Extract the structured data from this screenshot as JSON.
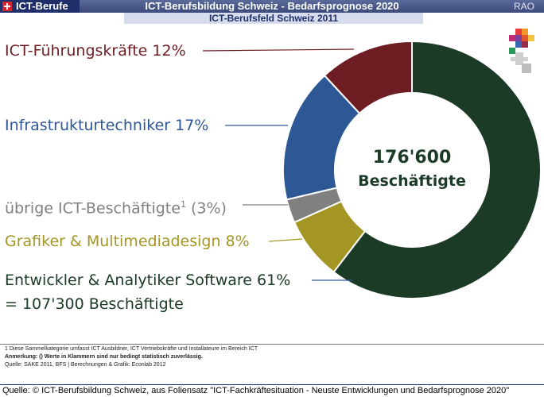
{
  "header": {
    "brand": "ICT-Berufe",
    "title": "ICT-Berufsbildung Schweiz - Bedarfsprognose 2020",
    "right_tag": "RAO",
    "subtitle": "ICT-Berufsfeld Schweiz 2011"
  },
  "colors": {
    "header_bg": "#3b4a7a",
    "brand_bg": "#1f2f6a",
    "subbar_bg": "#d6dcec"
  },
  "chart_data": {
    "type": "pie",
    "donut": true,
    "center_lines": [
      "176'600",
      "Beschäftigte"
    ],
    "slices": [
      {
        "label": "Entwickler & Analytiker Software",
        "value": 61,
        "color": "#1c3b26"
      },
      {
        "label": "Grafiker & Multimediadesign",
        "value": 8,
        "color": "#a39624"
      },
      {
        "label": "übrige ICT-Beschäftigte¹",
        "value": 3,
        "color": "#808080"
      },
      {
        "label": "Infrastrukturtechniker",
        "value": 17,
        "color": "#2e5796"
      },
      {
        "label": "ICT-Führungskräfte",
        "value": 12,
        "color": "#6e1d23"
      }
    ],
    "labels": {
      "fuehrung": "ICT-Führungskräfte 12%",
      "infra": "Infrastrukturtechniker 17%",
      "uebrige_main": "übrige ICT-Beschäftigte",
      "uebrige_sup": "1",
      "uebrige_pct": " (3%)",
      "grafiker": "Grafiker & Multimediadesign 8%",
      "entwickler_line1": "Entwickler & Analytiker Software 61%",
      "entwickler_line2": "= 107'300 Beschäftigte"
    }
  },
  "footnotes": [
    "1 Diese Sammelkategorie umfasst ICT Ausbildner, ICT Vertriebskräfte und Installateure im Bereich ICT",
    "Anmerkung: () Werte in Klammern sind nur bedingt statistisch zuverlässig.",
    "Quelle: SAKE 2011, BFS | Berechnungen & Grafik: Econlab 2012"
  ],
  "source": "Quelle: © ICT-Berufsbildung Schweiz, aus Foliensatz \"ICT-Fachkräftesituation - Neuste Entwicklungen und Bedarfsprognose 2020\""
}
